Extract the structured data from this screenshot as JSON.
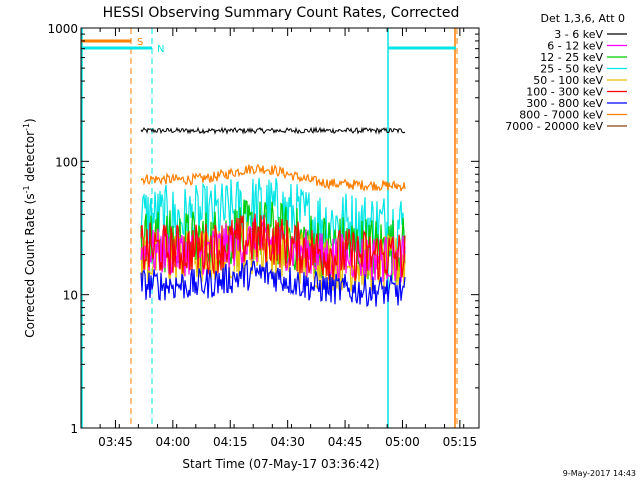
{
  "chart_data": {
    "type": "line",
    "title": "HESSI Observing Summary Count Rates, Corrected",
    "xlabel": "Start Time (07-May-17 03:36:42)",
    "ylabel_main": "Corrected Count Rate (s",
    "ylabel_exp1": "-1",
    "ylabel_mid": " detector",
    "ylabel_exp2": "-1",
    "ylabel_end": ")",
    "y_scale": "log",
    "ylim": [
      1,
      1000
    ],
    "xlim_minutes_after_0336": [
      0,
      104
    ],
    "x_ticks": [
      "03:45",
      "04:00",
      "04:15",
      "04:30",
      "04:45",
      "05:00",
      "05:15"
    ],
    "y_ticks": [
      "1",
      "10",
      "100",
      "1000"
    ],
    "grid": false,
    "legend_position": "top-right",
    "legend_title": "Det 1,3,6, Att 0",
    "footer_date": "9-May-2017 14:43",
    "markers": [
      {
        "label": "S",
        "color": "#ff7f00"
      },
      {
        "label": "N",
        "color": "#00e5e5"
      }
    ],
    "series": [
      {
        "name": "3 - 6 keV",
        "color": "#000000",
        "level": 170
      },
      {
        "name": "6 - 12 keV",
        "color": "#ff00ff",
        "level": 21
      },
      {
        "name": "12 - 25 keV",
        "color": "#00cc00",
        "level": 25
      },
      {
        "name": "25 - 50 keV",
        "color": "#00e5e5",
        "level": 38
      },
      {
        "name": "50 - 100 keV",
        "color": "#e5c000",
        "level": 19
      },
      {
        "name": "100 - 300 keV",
        "color": "#ff0000",
        "level": 22
      },
      {
        "name": "300 - 800 keV",
        "color": "#0000ff",
        "level": 12
      },
      {
        "name": "800 - 7000 keV",
        "color": "#ff7f00",
        "level": 74
      },
      {
        "name": "7000 - 20000 keV",
        "color": "#8b4513",
        "level": 0
      }
    ]
  }
}
